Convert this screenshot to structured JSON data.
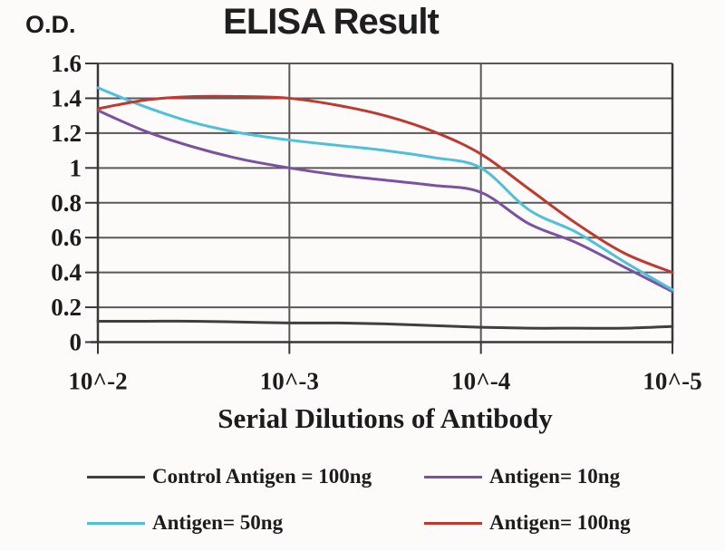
{
  "page": {
    "background": "#fcfbfa"
  },
  "chart_data": {
    "type": "line",
    "title": "ELISA Result",
    "ylabel": "O.D.",
    "xlabel": "Serial Dilutions of Antibody",
    "x_tick_labels": [
      "10^-2",
      "10^-3",
      "10^-4",
      "10^-5"
    ],
    "y_tick_labels": [
      "0",
      "0.2",
      "0.4",
      "0.6",
      "0.8",
      "1",
      "1.2",
      "1.4",
      "1.6"
    ],
    "y_tick_values": [
      0,
      0.2,
      0.4,
      0.6,
      0.8,
      1.0,
      1.2,
      1.4,
      1.6
    ],
    "ylim": [
      0,
      1.6
    ],
    "grid": true,
    "legend_position": "bottom",
    "axis_color": "#383838",
    "grid_color": "#595959",
    "x_decades": [
      0,
      0.25,
      0.5,
      0.75,
      1,
      1.25,
      1.5,
      1.75,
      2,
      2.25,
      2.5,
      2.75,
      3
    ],
    "series": [
      {
        "name": "Control Antigen = 100ng",
        "color": "#3f3f3f",
        "values": [
          0.12,
          0.12,
          0.12,
          0.115,
          0.11,
          0.11,
          0.105,
          0.095,
          0.085,
          0.08,
          0.08,
          0.08,
          0.09
        ]
      },
      {
        "name": "Antigen= 10ng",
        "color": "#7b52a0",
        "values": [
          1.33,
          1.21,
          1.12,
          1.05,
          1.0,
          0.96,
          0.93,
          0.9,
          0.86,
          0.68,
          0.57,
          0.43,
          0.29
        ]
      },
      {
        "name": "Antigen= 50ng",
        "color": "#4ec1d8",
        "values": [
          1.46,
          1.35,
          1.26,
          1.2,
          1.16,
          1.13,
          1.1,
          1.06,
          1.0,
          0.76,
          0.63,
          0.46,
          0.3
        ]
      },
      {
        "name": "Antigen= 100ng",
        "color": "#c0392f",
        "values": [
          1.34,
          1.39,
          1.41,
          1.41,
          1.4,
          1.36,
          1.3,
          1.21,
          1.08,
          0.88,
          0.68,
          0.51,
          0.4
        ]
      }
    ],
    "legend": {
      "rows": [
        [
          {
            "label": "Control Antigen = 100ng",
            "color": "#3f3f3f"
          },
          {
            "label": "Antigen= 10ng",
            "color": "#7b52a0"
          }
        ],
        [
          {
            "label": "Antigen= 50ng",
            "color": "#4ec1d8"
          },
          {
            "label": "Antigen= 100ng",
            "color": "#c0392f"
          }
        ]
      ]
    }
  }
}
